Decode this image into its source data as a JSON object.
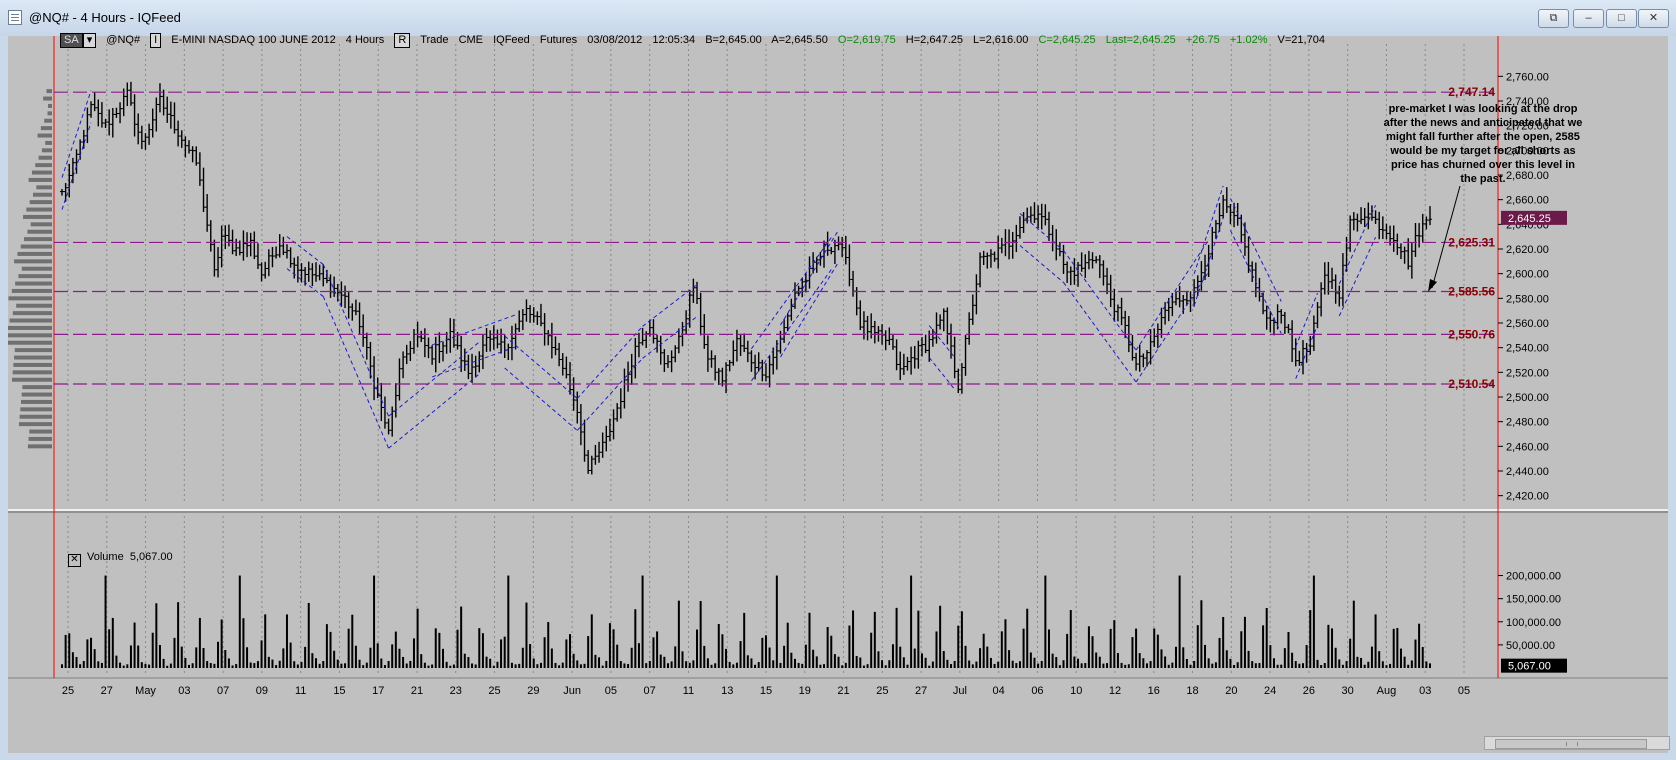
{
  "window": {
    "title": "@NQ# - 4 Hours - IQFeed"
  },
  "toolbar": {
    "sa_label": "SA",
    "symbol": "@NQ#",
    "interval_btn": "I",
    "contract": "E-MINI NASDAQ 100 JUNE 2012",
    "interval": "4 Hours",
    "r_btn": "R",
    "trade": "Trade",
    "exchange": "CME",
    "feed": "IQFeed",
    "type": "Futures",
    "date": "03/08/2012",
    "time": "12:05:34",
    "bid": "B=2,645.00",
    "ask": "A=2,645.50",
    "open": "O=2,619.75",
    "high": "H=2,647.25",
    "low": "L=2,616.00",
    "close": "C=2,645.25",
    "last": "Last=2,645.25",
    "change": "+26.75",
    "change_pct": "+1.02%",
    "volume": "V=21,704"
  },
  "volume_pane": {
    "label": "Volume",
    "value": "5,067.00"
  },
  "annotation": "pre-market I was looking at the drop after the news and anticipated that we might fall further after the open, 2585 would be my target for all shorts as price has churned over this level in the past.",
  "colors": {
    "background": "#c0c0c0",
    "bars": "#000000",
    "level_lines": "#8b1a8b",
    "level_labels": "#8b0000",
    "trendlines": "#1a1acc",
    "last_price_tag": "#6b1a4a",
    "axis": "#ff0000"
  },
  "chart_data": [
    {
      "type": "ohlc",
      "ylim": [
        2410,
        2770
      ],
      "y_ticks": [
        "2,760.00",
        "2,740.00",
        "2,720.00",
        "2,700.00",
        "2,680.00",
        "2,660.00",
        "2,640.00",
        "2,620.00",
        "2,600.00",
        "2,580.00",
        "2,560.00",
        "2,540.00",
        "2,520.00",
        "2,500.00",
        "2,480.00",
        "2,460.00",
        "2,440.00",
        "2,420.00"
      ],
      "x_ticks": [
        "25",
        "27",
        "May",
        "03",
        "07",
        "09",
        "11",
        "15",
        "17",
        "21",
        "23",
        "25",
        "29",
        "Jun",
        "05",
        "07",
        "11",
        "13",
        "15",
        "19",
        "21",
        "25",
        "27",
        "Jul",
        "04",
        "06",
        "10",
        "12",
        "16",
        "18",
        "20",
        "24",
        "26",
        "30",
        "Aug",
        "03",
        "05"
      ],
      "level_lines": [
        {
          "value": 2747.14,
          "label": "2,747.14"
        },
        {
          "value": 2625.31,
          "label": "2,625.31"
        },
        {
          "value": 2585.56,
          "label": "2,585.56"
        },
        {
          "value": 2550.76,
          "label": "2,550.76"
        },
        {
          "value": 2510.54,
          "label": "2,510.54"
        }
      ],
      "last_price": {
        "value": 2645.25,
        "label": "2,645.25"
      },
      "price_path": [
        [
          0,
          2665
        ],
        [
          3,
          2685
        ],
        [
          8,
          2735
        ],
        [
          12,
          2720
        ],
        [
          18,
          2745
        ],
        [
          22,
          2705
        ],
        [
          27,
          2740
        ],
        [
          32,
          2715
        ],
        [
          37,
          2690
        ],
        [
          40,
          2640
        ],
        [
          42,
          2600
        ],
        [
          44,
          2630
        ],
        [
          48,
          2620
        ],
        [
          52,
          2625
        ],
        [
          55,
          2600
        ],
        [
          60,
          2625
        ],
        [
          65,
          2605
        ],
        [
          72,
          2595
        ],
        [
          78,
          2580
        ],
        [
          82,
          2560
        ],
        [
          87,
          2500
        ],
        [
          90,
          2470
        ],
        [
          93,
          2520
        ],
        [
          97,
          2550
        ],
        [
          102,
          2535
        ],
        [
          107,
          2550
        ],
        [
          112,
          2520
        ],
        [
          117,
          2545
        ],
        [
          122,
          2540
        ],
        [
          128,
          2570
        ],
        [
          133,
          2555
        ],
        [
          138,
          2525
        ],
        [
          142,
          2490
        ],
        [
          145,
          2440
        ],
        [
          150,
          2465
        ],
        [
          154,
          2500
        ],
        [
          158,
          2540
        ],
        [
          162,
          2560
        ],
        [
          166,
          2525
        ],
        [
          170,
          2545
        ],
        [
          174,
          2590
        ],
        [
          178,
          2530
        ],
        [
          182,
          2515
        ],
        [
          186,
          2545
        ],
        [
          190,
          2530
        ],
        [
          194,
          2520
        ],
        [
          198,
          2545
        ],
        [
          202,
          2585
        ],
        [
          206,
          2600
        ],
        [
          210,
          2620
        ],
        [
          214,
          2625
        ],
        [
          217,
          2600
        ],
        [
          220,
          2560
        ],
        [
          224,
          2550
        ],
        [
          228,
          2545
        ],
        [
          231,
          2520
        ],
        [
          235,
          2535
        ],
        [
          239,
          2545
        ],
        [
          243,
          2565
        ],
        [
          247,
          2510
        ],
        [
          250,
          2560
        ],
        [
          253,
          2610
        ],
        [
          257,
          2615
        ],
        [
          261,
          2625
        ],
        [
          265,
          2645
        ],
        [
          269,
          2650
        ],
        [
          273,
          2630
        ],
        [
          277,
          2600
        ],
        [
          281,
          2605
        ],
        [
          285,
          2615
        ],
        [
          289,
          2580
        ],
        [
          293,
          2555
        ],
        [
          296,
          2525
        ],
        [
          300,
          2540
        ],
        [
          304,
          2570
        ],
        [
          308,
          2580
        ],
        [
          312,
          2585
        ],
        [
          316,
          2620
        ],
        [
          320,
          2655
        ],
        [
          324,
          2640
        ],
        [
          328,
          2600
        ],
        [
          332,
          2560
        ],
        [
          336,
          2570
        ],
        [
          340,
          2530
        ],
        [
          344,
          2540
        ],
        [
          348,
          2600
        ],
        [
          352,
          2585
        ],
        [
          355,
          2640
        ],
        [
          359,
          2650
        ],
        [
          363,
          2640
        ],
        [
          367,
          2630
        ],
        [
          371,
          2610
        ],
        [
          374,
          2635
        ],
        [
          377,
          2645
        ]
      ],
      "volume": {
        "ylim": [
          0,
          225000
        ],
        "y_ticks": [
          "200,000.00",
          "150,000.00",
          "100,000.00",
          "50,000.00"
        ],
        "last": "5,067.00"
      }
    }
  ]
}
